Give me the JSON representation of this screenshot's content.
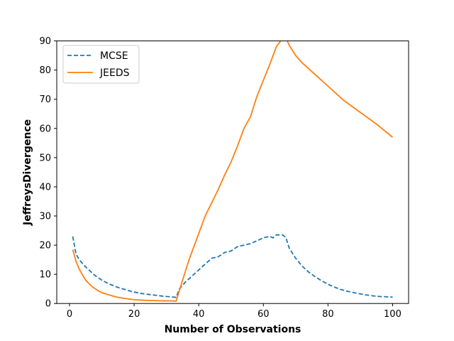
{
  "chart_data": {
    "type": "line",
    "title": "",
    "xlabel": "Number of Observations",
    "ylabel": "JeffreysDivergence",
    "xlim": [
      -3.95,
      104.95
    ],
    "ylim": [
      0,
      90
    ],
    "xticks": [
      0,
      20,
      40,
      60,
      80,
      100
    ],
    "yticks": [
      0,
      10,
      20,
      30,
      40,
      50,
      60,
      70,
      80,
      90
    ],
    "grid": false,
    "legend_position": "top-left",
    "series": [
      {
        "name": "MCSE",
        "color": "#1f77b4",
        "style": "dashed",
        "x": [
          1,
          2,
          3,
          5,
          8,
          10,
          12,
          15,
          18,
          20,
          23,
          26,
          29,
          31,
          33,
          34,
          36,
          38,
          40,
          42,
          44,
          46,
          48,
          50,
          52,
          54,
          56,
          58,
          60,
          62,
          63,
          64,
          66,
          67,
          68,
          70,
          72,
          74,
          76,
          78,
          80,
          82,
          84,
          86,
          88,
          90,
          92,
          94,
          96,
          98,
          100
        ],
        "y": [
          23.0,
          17.0,
          15.0,
          12.5,
          9.5,
          8.0,
          6.8,
          5.5,
          4.5,
          3.9,
          3.3,
          2.9,
          2.5,
          2.3,
          2.1,
          5.0,
          7.5,
          9.5,
          11.5,
          13.5,
          15.5,
          16.0,
          17.5,
          18.0,
          19.5,
          20.0,
          20.5,
          21.5,
          22.5,
          23.0,
          22.5,
          23.5,
          23.5,
          22.5,
          19.0,
          15.5,
          12.8,
          10.8,
          9.2,
          7.8,
          6.6,
          5.6,
          4.8,
          4.2,
          3.7,
          3.3,
          2.9,
          2.6,
          2.4,
          2.3,
          2.2
        ]
      },
      {
        "name": "JEEDS",
        "color": "#ff7f0e",
        "style": "solid",
        "x": [
          1,
          2,
          3,
          4,
          5,
          6,
          7,
          8,
          9,
          10,
          12,
          15,
          18,
          20,
          23,
          26,
          29,
          31,
          33,
          35,
          37,
          38,
          40,
          42,
          44,
          46,
          48,
          50,
          52,
          54,
          56,
          58,
          60,
          62,
          64,
          66,
          67,
          68,
          70,
          72,
          75,
          78,
          80,
          85,
          90,
          95,
          100
        ],
        "y": [
          18.5,
          14.5,
          11.8,
          9.8,
          8.0,
          6.8,
          5.8,
          5.0,
          4.3,
          3.7,
          3.0,
          2.1,
          1.6,
          1.3,
          1.1,
          1.0,
          0.9,
          0.9,
          0.8,
          8.0,
          15.0,
          18.0,
          24.0,
          30.0,
          34.5,
          39.0,
          44.0,
          48.5,
          54.0,
          60.0,
          64.0,
          71.0,
          76.5,
          82.0,
          88.0,
          91.0,
          91.0,
          88.5,
          85.0,
          82.5,
          79.5,
          76.5,
          74.5,
          69.5,
          65.5,
          61.5,
          57.0
        ]
      }
    ]
  }
}
